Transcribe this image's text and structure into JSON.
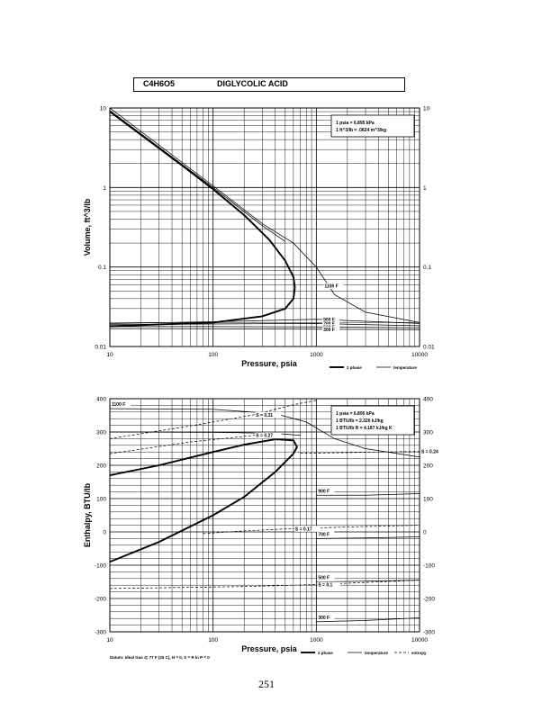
{
  "header": {
    "formula": "C4H6O5",
    "name": "DIGLYCOLIC ACID"
  },
  "page_number": "251",
  "chart_data": [
    {
      "type": "line",
      "xscale": "log",
      "yscale": "log",
      "xlim": [
        10,
        10000
      ],
      "ylim": [
        0.01,
        10
      ],
      "xlabel": "Pressure,  psia",
      "ylabel": "Volume,  ft^3/lb",
      "xticks": [
        "10",
        "100",
        "1000",
        "10000"
      ],
      "yticks": [
        "0.01",
        "0.1",
        "1",
        "10"
      ],
      "grid": true,
      "conversion_note": [
        "1 psia  =  6.895 kPa",
        "1 ft^3/lb  =  .0624 m^3/kg"
      ],
      "legend": [
        "2 phase",
        "temperature"
      ],
      "series": [
        {
          "role": "2 phase",
          "label": "",
          "points": [
            [
              10,
              9.0
            ],
            [
              20,
              4.6
            ],
            [
              50,
              1.9
            ],
            [
              100,
              0.95
            ],
            [
              200,
              0.45
            ],
            [
              350,
              0.22
            ],
            [
              500,
              0.12
            ],
            [
              600,
              0.075
            ],
            [
              620,
              0.055
            ],
            [
              600,
              0.04
            ],
            [
              500,
              0.03
            ],
            [
              300,
              0.024
            ],
            [
              100,
              0.02
            ],
            [
              30,
              0.019
            ],
            [
              10,
              0.018
            ]
          ]
        },
        {
          "role": "temperature",
          "label": "1100 F",
          "points": [
            [
              10,
              10
            ],
            [
              100,
              1.05
            ],
            [
              300,
              0.35
            ],
            [
              600,
              0.2
            ],
            [
              1000,
              0.1
            ],
            [
              1500,
              0.045
            ],
            [
              3000,
              0.027
            ],
            [
              10000,
              0.02
            ]
          ]
        },
        {
          "role": "temperature",
          "label": "",
          "points": [
            [
              10,
              9.3
            ],
            [
              100,
              1.0
            ],
            [
              300,
              0.33
            ],
            [
              500,
              0.21
            ]
          ]
        },
        {
          "role": "temperature",
          "label": "900 F",
          "points": [
            [
              10,
              0.0195
            ],
            [
              100,
              0.0205
            ],
            [
              1000,
              0.022
            ],
            [
              10000,
              0.0195
            ]
          ]
        },
        {
          "role": "temperature",
          "label": "700 F",
          "points": [
            [
              10,
              0.0188
            ],
            [
              100,
              0.0192
            ],
            [
              1000,
              0.0195
            ],
            [
              10000,
              0.0182
            ]
          ]
        },
        {
          "role": "temperature",
          "label": "500 F",
          "points": [
            [
              10,
              0.0178
            ],
            [
              100,
              0.0178
            ],
            [
              1000,
              0.0176
            ],
            [
              10000,
              0.0172
            ]
          ]
        },
        {
          "role": "temperature",
          "label": "300 F",
          "points": [
            [
              10,
              0.0168
            ],
            [
              100,
              0.0167
            ],
            [
              1000,
              0.0165
            ],
            [
              10000,
              0.0163
            ]
          ]
        }
      ]
    },
    {
      "type": "line",
      "xscale": "log",
      "yscale": "linear",
      "xlim": [
        10,
        10000
      ],
      "ylim": [
        -300,
        400
      ],
      "xlabel": "Pressure,  psia",
      "ylabel": "Enthalpy,  BTU/lb",
      "xticks": [
        "10",
        "100",
        "1000",
        "10000"
      ],
      "yticks": [
        "400",
        "300",
        "200",
        "100",
        "0",
        "-100",
        "-200",
        "-300"
      ],
      "grid": true,
      "conversion_note": [
        "1 psia  =  6.895 kPa",
        "1 BTU/lb  =  2.326 kJ/kg",
        "1 BTU/lb R  =  4.187 kJ/kg K"
      ],
      "legend": [
        "2 phase",
        "temperature",
        "entropy"
      ],
      "footnote": "Datum: Ideal Gas @ 77 F (25 C), H = 0,  S = R ln P = 0",
      "series": [
        {
          "role": "2 phase",
          "label": "",
          "points": [
            [
              10,
              -90
            ],
            [
              30,
              -30
            ],
            [
              100,
              50
            ],
            [
              200,
              105
            ],
            [
              400,
              180
            ],
            [
              600,
              235
            ],
            [
              650,
              255
            ],
            [
              600,
              275
            ],
            [
              400,
              278
            ],
            [
              200,
              262
            ],
            [
              100,
              240
            ],
            [
              30,
              200
            ],
            [
              10,
              170
            ]
          ]
        },
        {
          "role": "temperature",
          "label": "1100 F",
          "points": [
            [
              10,
              370
            ],
            [
              100,
              368
            ],
            [
              400,
              355
            ],
            [
              800,
              330
            ],
            [
              1500,
              280
            ],
            [
              3000,
              250
            ],
            [
              10000,
              225
            ]
          ]
        },
        {
          "role": "temperature",
          "label": "",
          "points": [
            [
              10,
              300
            ],
            [
              100,
              299
            ],
            [
              400,
              296
            ],
            [
              700,
              290
            ]
          ]
        },
        {
          "role": "temperature",
          "label": "900 F",
          "points": [
            [
              1000,
              110
            ],
            [
              3000,
              110
            ],
            [
              10000,
              115
            ]
          ]
        },
        {
          "role": "temperature",
          "label": "700 F",
          "points": [
            [
              1000,
              -20
            ],
            [
              3000,
              -18
            ],
            [
              10000,
              -15
            ]
          ]
        },
        {
          "role": "temperature",
          "label": "500 F",
          "points": [
            [
              1000,
              -150
            ],
            [
              3000,
              -148
            ],
            [
              10000,
              -145
            ]
          ]
        },
        {
          "role": "temperature",
          "label": "300 F",
          "points": [
            [
              1000,
              -270
            ],
            [
              3000,
              -266
            ],
            [
              10000,
              -258
            ]
          ]
        },
        {
          "role": "entropy",
          "label": "S = 0.31",
          "points": [
            [
              10,
              280
            ],
            [
              60,
              318
            ],
            [
              250,
              352
            ],
            [
              600,
              382
            ],
            [
              1000,
              395
            ]
          ]
        },
        {
          "role": "entropy",
          "label": "S = 0.27",
          "points": [
            [
              10,
              235
            ],
            [
              60,
              270
            ],
            [
              250,
              290
            ],
            [
              450,
              295
            ]
          ]
        },
        {
          "role": "entropy",
          "label": "S = 0.24",
          "points": [
            [
              700,
              236
            ],
            [
              2000,
              238
            ],
            [
              10000,
              242
            ]
          ]
        },
        {
          "role": "entropy",
          "label": "S = 0.17",
          "points": [
            [
              80,
              -5
            ],
            [
              200,
              3
            ],
            [
              600,
              10
            ],
            [
              2000,
              15
            ],
            [
              10000,
              20
            ]
          ]
        },
        {
          "role": "entropy",
          "label": "S = 0.1",
          "points": [
            [
              10,
              -170
            ],
            [
              200,
              -164
            ],
            [
              1000,
              -158
            ],
            [
              10000,
              -145
            ]
          ]
        }
      ]
    }
  ]
}
